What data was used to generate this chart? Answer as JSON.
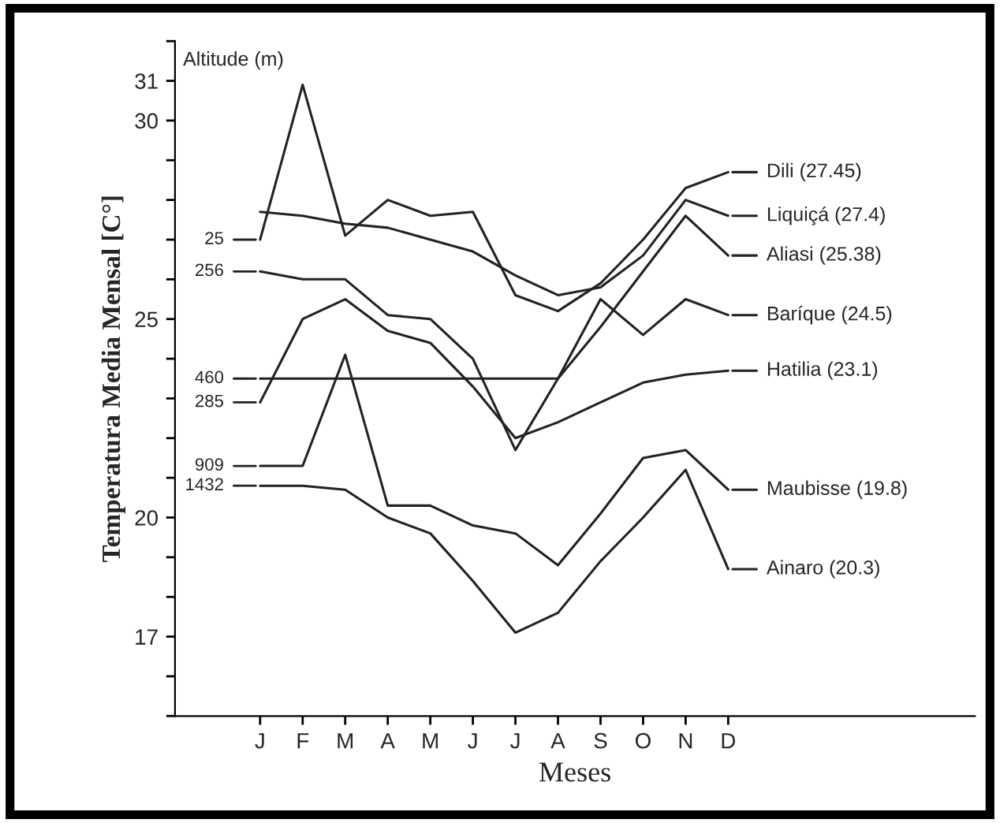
{
  "chart_data": {
    "type": "line",
    "xlabel": "Meses",
    "ylabel": "Temperatura Media Mensal [C°]",
    "categories": [
      "J",
      "F",
      "M",
      "A",
      "M",
      "J",
      "J",
      "A",
      "S",
      "O",
      "N",
      "D"
    ],
    "series": [
      {
        "name": "Dili (27.45)",
        "color": "#222222",
        "values": [
          27.0,
          30.9,
          27.1,
          28.0,
          27.6,
          27.7,
          25.6,
          25.2,
          25.9,
          27.0,
          28.3,
          28.7
        ]
      },
      {
        "name": "Liquiçá (27.4)",
        "color": "#222222",
        "values": [
          27.7,
          27.6,
          27.4,
          27.3,
          27.0,
          26.7,
          26.1,
          25.6,
          25.8,
          26.6,
          28.0,
          27.6
        ]
      },
      {
        "name": "Aliasi (25.38)",
        "color": "#222222",
        "values": [
          23.5,
          23.5,
          23.5,
          23.5,
          23.5,
          23.5,
          23.5,
          23.5,
          24.8,
          26.2,
          27.6,
          26.6
        ]
      },
      {
        "name": "Baríque (24.5)",
        "color": "#222222",
        "values": [
          26.2,
          26.0,
          26.0,
          25.1,
          25.0,
          24.0,
          21.7,
          23.5,
          25.5,
          24.6,
          25.5,
          25.1
        ]
      },
      {
        "name": "Hatilia (23.1)",
        "color": "#222222",
        "values": [
          22.9,
          25.0,
          25.5,
          24.7,
          24.4,
          23.3,
          22.0,
          22.4,
          22.9,
          23.4,
          23.6,
          23.7
        ]
      },
      {
        "name": "Maubisse (19.8)",
        "color": "#222222",
        "values": [
          21.3,
          21.3,
          24.1,
          20.3,
          20.3,
          19.8,
          19.6,
          18.8,
          20.1,
          21.5,
          21.7,
          20.7
        ]
      },
      {
        "name": "Ainaro (20.3)",
        "color": "#222222",
        "values": [
          20.8,
          20.8,
          20.7,
          20.0,
          19.6,
          18.4,
          17.1,
          17.6,
          18.9,
          20.0,
          21.2,
          18.7
        ]
      }
    ],
    "ylim": [
      15,
      32
    ],
    "yticks": [
      17,
      20,
      25,
      30,
      31
    ],
    "annotations": [
      "Altitude (m)",
      {
        "text": "25",
        "x": "J",
        "y": 27.0
      },
      {
        "text": "256",
        "x": "J",
        "y": 26.2
      },
      {
        "text": "460",
        "x": "J",
        "y": 23.5
      },
      {
        "text": "285",
        "x": "J",
        "y": 22.9
      },
      {
        "text": "909",
        "x": "J",
        "y": 21.3
      },
      {
        "text": "1432",
        "x": "J",
        "y": 20.8
      }
    ],
    "grid": false,
    "legend": "right"
  }
}
